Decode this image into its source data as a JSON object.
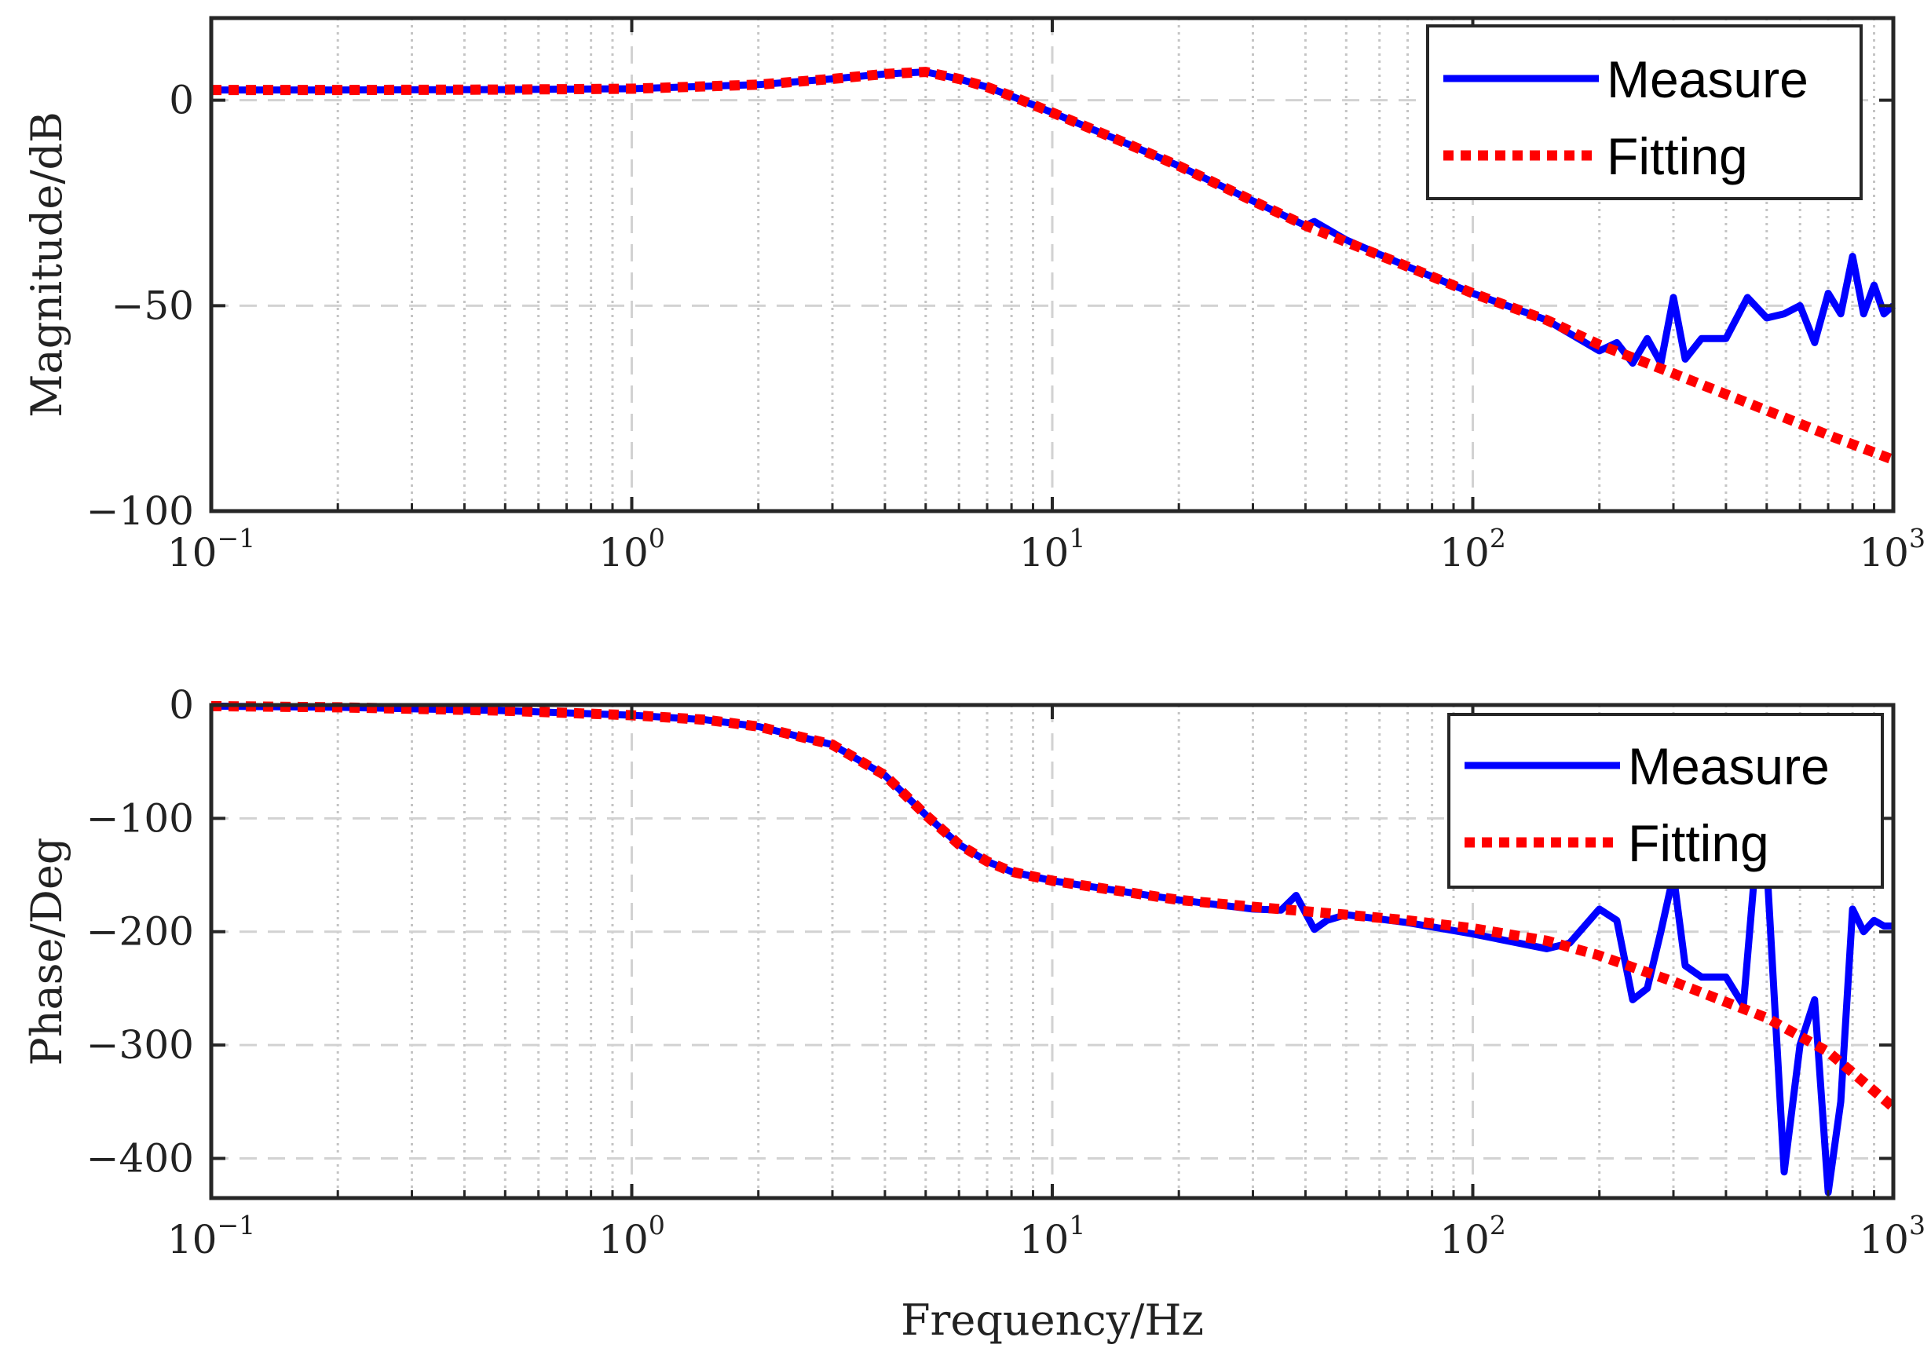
{
  "chart_data": [
    {
      "type": "line",
      "subplot": "magnitude",
      "title": "",
      "xlabel": "",
      "ylabel": "Magnitude/dB",
      "xscale": "log",
      "xlim": [
        0.1,
        1000
      ],
      "ylim": [
        -100,
        20
      ],
      "yticks": [
        0,
        -50,
        -100
      ],
      "ytick_labels": [
        "0",
        "−50",
        "−100"
      ],
      "xticks": [
        0.1,
        1,
        10,
        100,
        1000
      ],
      "xtick_labels": [
        {
          "base": "10",
          "exp": "−1"
        },
        {
          "base": "10",
          "exp": "0"
        },
        {
          "base": "10",
          "exp": "1"
        },
        {
          "base": "10",
          "exp": "2"
        },
        {
          "base": "10",
          "exp": "3"
        }
      ],
      "grid": true,
      "legend": {
        "position": "top-right",
        "entries": [
          "Measure",
          "Fitting"
        ]
      },
      "series": [
        {
          "name": "Measure",
          "color": "#0000ff",
          "style": "solid",
          "x": [
            0.1,
            0.2,
            0.5,
            1,
            2,
            3,
            4,
            5,
            6,
            7,
            8,
            10,
            15,
            20,
            30,
            40,
            42,
            50,
            70,
            100,
            150,
            200,
            220,
            240,
            260,
            280,
            300,
            320,
            350,
            400,
            450,
            500,
            550,
            600,
            650,
            700,
            750,
            800,
            850,
            900,
            950,
            1000
          ],
          "values": [
            2.5,
            2.5,
            2.6,
            2.8,
            3.8,
            5.2,
            6.4,
            6.9,
            5.2,
            3.2,
            1.0,
            -3.0,
            -10.5,
            -16.0,
            -24.5,
            -30.5,
            -29.5,
            -34.0,
            -40.5,
            -47.0,
            -53.5,
            -61.0,
            -59.0,
            -64.0,
            -58.0,
            -64.0,
            -48.0,
            -63.0,
            -58.0,
            -58.0,
            -48.0,
            -53.0,
            -52.0,
            -50.0,
            -59.0,
            -47.0,
            -52.0,
            -38.0,
            -52.0,
            -45.0,
            -52.0,
            -50.0
          ]
        },
        {
          "name": "Fitting",
          "color": "#ff0000",
          "style": "dotted",
          "x": [
            0.1,
            0.2,
            0.5,
            1,
            2,
            3,
            4,
            5,
            6,
            7,
            8,
            10,
            15,
            20,
            30,
            40,
            50,
            70,
            100,
            150,
            200,
            300,
            500,
            700,
            1000
          ],
          "values": [
            2.5,
            2.5,
            2.6,
            2.8,
            3.8,
            5.2,
            6.4,
            6.9,
            5.2,
            3.2,
            1.0,
            -3.0,
            -10.5,
            -16.0,
            -24.5,
            -30.5,
            -34.5,
            -40.5,
            -47.0,
            -53.5,
            -59.5,
            -66.5,
            -75.5,
            -81.5,
            -87.5
          ]
        }
      ]
    },
    {
      "type": "line",
      "subplot": "phase",
      "title": "",
      "xlabel": "Frequency/Hz",
      "ylabel": "Phase/Deg",
      "xscale": "log",
      "xlim": [
        0.1,
        1000
      ],
      "ylim": [
        -435,
        0
      ],
      "yticks": [
        0,
        -100,
        -200,
        -300,
        -400
      ],
      "ytick_labels": [
        "0",
        "−100",
        "−200",
        "−300",
        "−400"
      ],
      "xticks": [
        0.1,
        1,
        10,
        100,
        1000
      ],
      "xtick_labels": [
        {
          "base": "10",
          "exp": "−1"
        },
        {
          "base": "10",
          "exp": "0"
        },
        {
          "base": "10",
          "exp": "1"
        },
        {
          "base": "10",
          "exp": "2"
        },
        {
          "base": "10",
          "exp": "3"
        }
      ],
      "grid": true,
      "legend": {
        "position": "top-right",
        "entries": [
          "Measure",
          "Fitting"
        ]
      },
      "series": [
        {
          "name": "Measure",
          "color": "#0000ff",
          "style": "solid",
          "x": [
            0.1,
            0.2,
            0.5,
            1,
            1.5,
            2,
            3,
            4,
            5,
            6,
            7,
            8,
            10,
            15,
            20,
            30,
            35,
            38,
            42,
            45,
            50,
            70,
            100,
            150,
            170,
            200,
            220,
            240,
            260,
            280,
            300,
            320,
            350,
            400,
            440,
            470,
            500,
            550,
            600,
            650,
            700,
            750,
            800,
            850,
            900,
            950,
            1000
          ],
          "values": [
            -1,
            -2,
            -5,
            -9,
            -13,
            -19,
            -35,
            -62,
            -97,
            -123,
            -138,
            -147,
            -155,
            -165,
            -172,
            -180,
            -181,
            -168,
            -198,
            -190,
            -185,
            -192,
            -202,
            -215,
            -210,
            -180,
            -190,
            -260,
            -250,
            -200,
            -150,
            -230,
            -240,
            -240,
            -265,
            -140,
            -140,
            -412,
            -300,
            -260,
            -430,
            -350,
            -180,
            -200,
            -190,
            -195,
            -195
          ]
        },
        {
          "name": "Fitting",
          "color": "#ff0000",
          "style": "dotted",
          "x": [
            0.1,
            0.2,
            0.5,
            1,
            1.5,
            2,
            3,
            4,
            5,
            6,
            7,
            8,
            10,
            15,
            20,
            30,
            40,
            50,
            70,
            100,
            150,
            200,
            300,
            500,
            700,
            1000
          ],
          "values": [
            -1,
            -2,
            -5,
            -9,
            -13,
            -19,
            -35,
            -62,
            -97,
            -123,
            -138,
            -147,
            -155,
            -165,
            -172,
            -178,
            -182,
            -185,
            -190,
            -197,
            -208,
            -221,
            -244,
            -276,
            -306,
            -355
          ]
        }
      ]
    }
  ]
}
